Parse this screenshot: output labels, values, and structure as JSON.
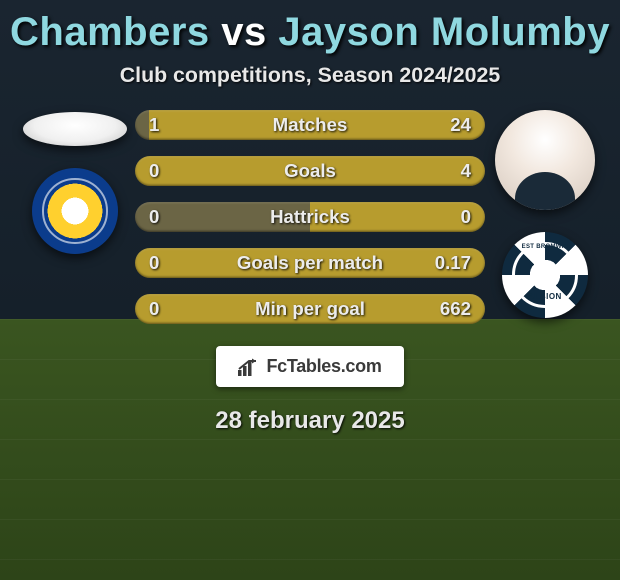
{
  "title": {
    "player1": "Chambers",
    "vs": "vs",
    "player2": "Jayson Molumby",
    "color_main": "#8fd8e0",
    "color_vs": "#ffffff",
    "fontsize_pt": 30
  },
  "subtitle": {
    "text": "Club competitions, Season 2024/2025",
    "fontsize_pt": 16
  },
  "stats": {
    "bar_left_color": "#6b6545",
    "bar_right_color": "#b79c2e",
    "label_fontsize_pt": 14,
    "value_fontsize_pt": 14,
    "rows": [
      {
        "label": "Matches",
        "left": "1",
        "right": "24",
        "left_share": 0.04
      },
      {
        "label": "Goals",
        "left": "0",
        "right": "4",
        "left_share": 0.0
      },
      {
        "label": "Hattricks",
        "left": "0",
        "right": "0",
        "left_share": 0.5
      },
      {
        "label": "Goals per match",
        "left": "0",
        "right": "0.17",
        "left_share": 0.0
      },
      {
        "label": "Min per goal",
        "left": "0",
        "right": "662",
        "left_share": 0.0
      }
    ]
  },
  "brand": {
    "text": "FcTables.com"
  },
  "date": {
    "text": "28 february 2025",
    "fontsize_pt": 18
  },
  "clubs": {
    "left_name": "leeds-badge",
    "right_name": "west-brom-badge",
    "wba_top_text": "EST BROMWIC"
  },
  "avatars": {
    "left_name": "player-chambers-avatar",
    "right_name": "player-molumby-avatar"
  }
}
